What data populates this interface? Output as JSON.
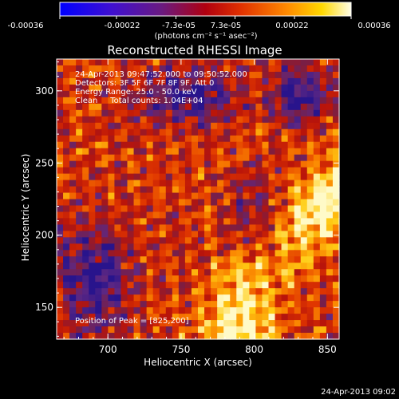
{
  "colorbar": {
    "ticks": [
      "-0.00036",
      "-0.00022",
      "-7.3e-05",
      "7.3e-05",
      "0.00022",
      "0.00036"
    ],
    "tick_values": [
      -0.00036,
      -0.00022,
      -7.3e-05,
      7.3e-05,
      0.00022,
      0.00036
    ],
    "units_label": "(photons cm⁻² s⁻¹ asec⁻²)",
    "colors": [
      "#0000ff",
      "#6a0dad",
      "#8b2a4c",
      "#cc0000",
      "#ff6a00",
      "#ffd200",
      "#ffffe0"
    ]
  },
  "title": "Reconstructed RHESSI Image",
  "annotations": {
    "time_range": "24-Apr-2013 09:47:52.000 to 09:50:52.000",
    "detectors": "Detectors: 3F 5F 6F 7F 8F 9F, Att 0",
    "energy": "Energy Range: 25.0 - 50.0 keV",
    "clean": "Clean     Total counts: 1.04E+04",
    "peak": "Position of Peak = [825,200]"
  },
  "footer": "24-Apr-2013 09:02",
  "chart_data": {
    "type": "heatmap",
    "title": "Reconstructed RHESSI Image",
    "xlabel": "Heliocentric X (arcsec)",
    "ylabel": "Heliocentric Y (arcsec)",
    "xlim": [
      665,
      858
    ],
    "ylim": [
      128,
      322
    ],
    "xticks": [
      700,
      750,
      800,
      850
    ],
    "yticks": [
      150,
      200,
      250,
      300
    ],
    "peak": [
      825,
      200
    ]
  }
}
